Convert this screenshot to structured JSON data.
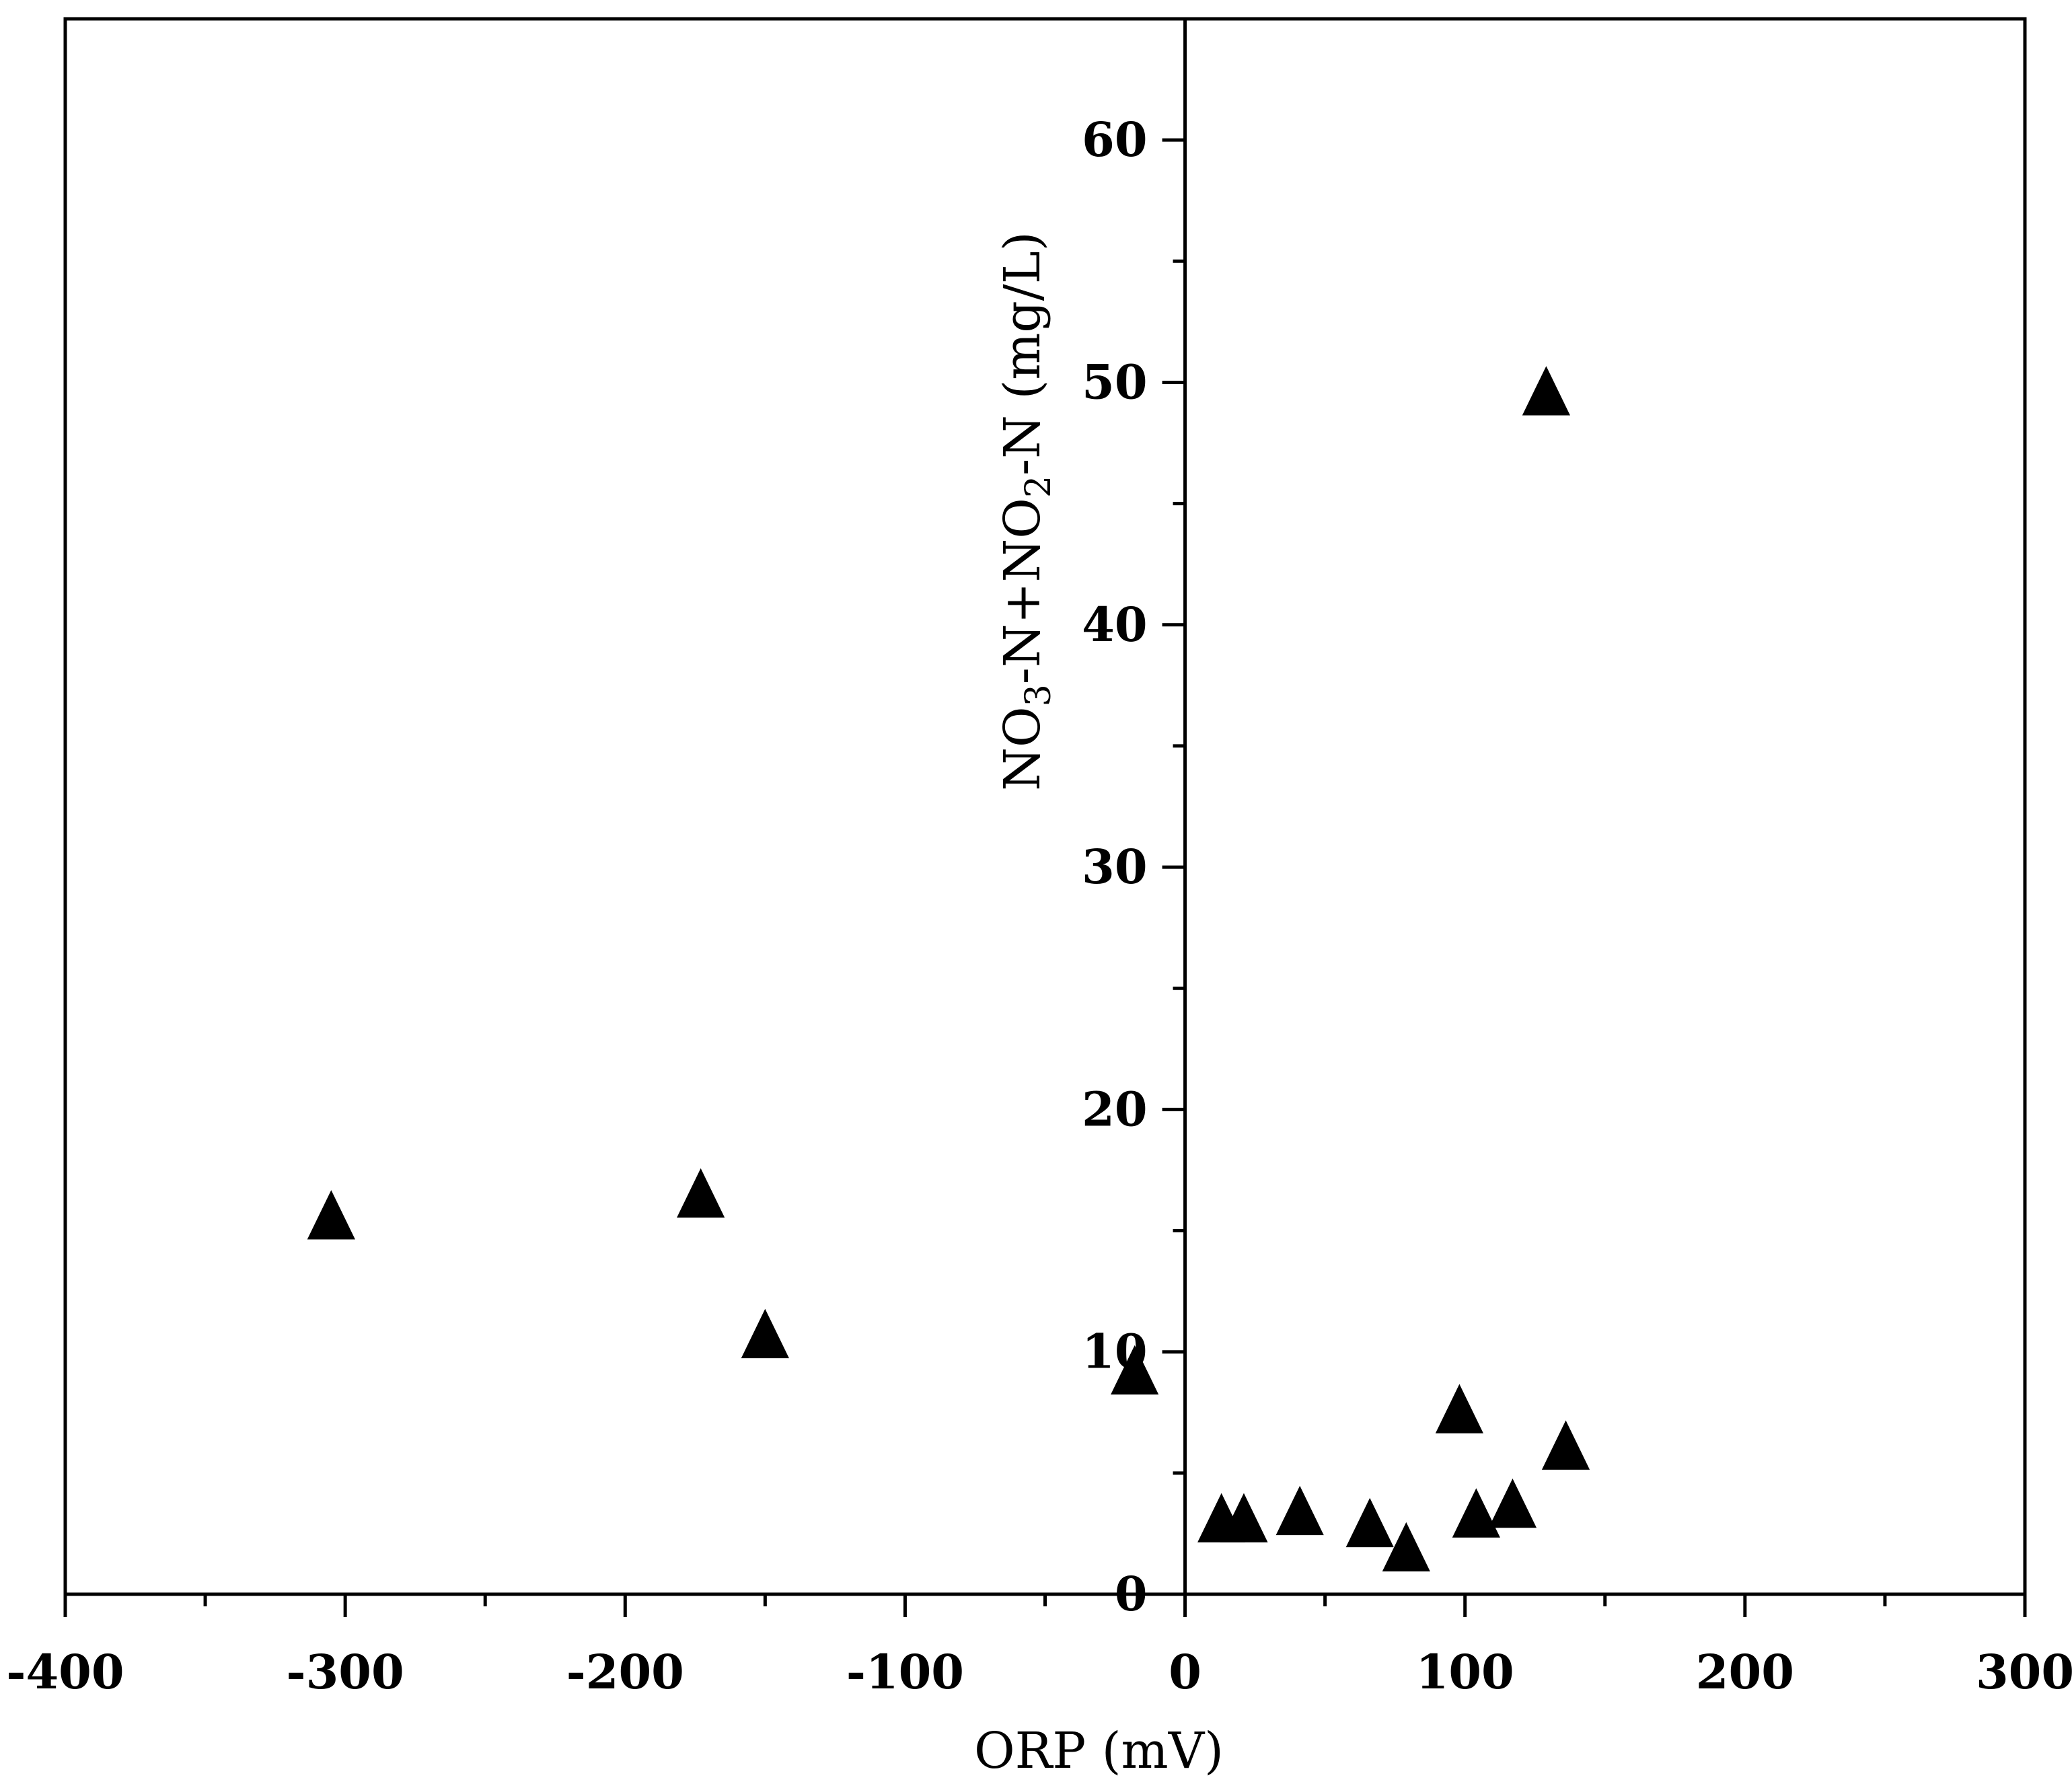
{
  "chart_data": {
    "type": "scatter",
    "title": "",
    "xlabel": "ORP (mV)",
    "ylabel_parts": [
      {
        "text": "NO",
        "sub": false
      },
      {
        "text": "3",
        "sub": true
      },
      {
        "text": "-N+NO",
        "sub": false
      },
      {
        "text": "2",
        "sub": true
      },
      {
        "text": "-N (mg/L)",
        "sub": false
      }
    ],
    "xlim": [
      -400,
      300
    ],
    "ylim": [
      0,
      65
    ],
    "x_ticks": [
      -400,
      -300,
      -200,
      -100,
      0,
      100,
      200,
      300
    ],
    "x_tick_labels": [
      "-400",
      "-300",
      "-200",
      "-100",
      "0",
      "100",
      "200",
      "300"
    ],
    "x_minor_ticks": [
      -350,
      -250,
      -150,
      -50,
      50,
      150,
      250
    ],
    "y_ticks": [
      0,
      10,
      20,
      30,
      40,
      50,
      60
    ],
    "y_tick_labels": [
      "0",
      "10",
      "20",
      "30",
      "40",
      "50",
      "60"
    ],
    "y_minor_ticks": [
      5,
      15,
      25,
      35,
      45,
      55
    ],
    "y_axis_position_x": 0,
    "marker": "triangle",
    "marker_color": "#000000",
    "grid": false,
    "legend": "none",
    "series": [
      {
        "points": [
          {
            "x": -305,
            "y": 15.5
          },
          {
            "x": -173,
            "y": 16.4
          },
          {
            "x": -150,
            "y": 10.6
          },
          {
            "x": -18,
            "y": 9.1
          },
          {
            "x": 13,
            "y": 3.0
          },
          {
            "x": 21,
            "y": 3.0
          },
          {
            "x": 41,
            "y": 3.3
          },
          {
            "x": 66,
            "y": 2.8
          },
          {
            "x": 79,
            "y": 1.8
          },
          {
            "x": 98,
            "y": 7.5
          },
          {
            "x": 104,
            "y": 3.2
          },
          {
            "x": 117,
            "y": 3.6
          },
          {
            "x": 129,
            "y": 49.5
          },
          {
            "x": 136,
            "y": 6.0
          }
        ]
      }
    ]
  }
}
